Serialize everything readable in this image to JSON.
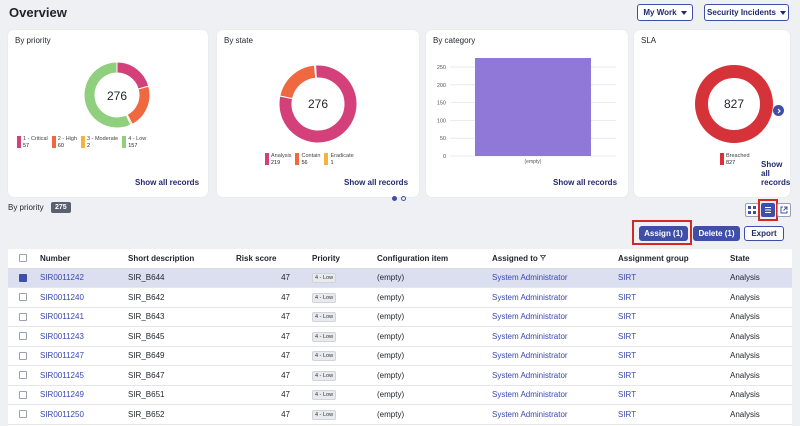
{
  "page": {
    "title": "Overview"
  },
  "header": {
    "my_work": "My Work",
    "security_incidents": "Security Incidents"
  },
  "cards": {
    "priority": {
      "title": "By priority",
      "total": "276",
      "show_all": "Show all records",
      "legend": [
        {
          "label": "1 - Critical",
          "value": "57",
          "color": "#d4407a"
        },
        {
          "label": "2 - High",
          "value": "60",
          "color": "#ef6840"
        },
        {
          "label": "3 - Moderate",
          "value": "2",
          "color": "#f6b23e"
        },
        {
          "label": "4 - Low",
          "value": "157",
          "color": "#8fcf7e"
        }
      ]
    },
    "state": {
      "title": "By state",
      "total": "276",
      "show_all": "Show all records",
      "legend": [
        {
          "label": "Analysis",
          "value": "219",
          "color": "#d4407a"
        },
        {
          "label": "Contain",
          "value": "56",
          "color": "#ef6840"
        },
        {
          "label": "Eradicate",
          "value": "1",
          "color": "#f6b23e"
        }
      ]
    },
    "category": {
      "title": "By category",
      "show_all": "Show all records",
      "y_ticks": [
        "250",
        "200",
        "150",
        "100",
        "50",
        "0"
      ]
    },
    "sla": {
      "title": "SLA",
      "total": "827",
      "show_all": "Show all records",
      "legend": [
        {
          "label": "Breached",
          "value": "827",
          "color": "#d6323a"
        }
      ]
    }
  },
  "chart_data": [
    {
      "type": "pie",
      "title": "By priority",
      "categories": [
        "1 - Critical",
        "2 - High",
        "3 - Moderate",
        "4 - Low"
      ],
      "values": [
        57,
        60,
        2,
        157
      ]
    },
    {
      "type": "pie",
      "title": "By state",
      "categories": [
        "Analysis",
        "Contain",
        "Eradicate"
      ],
      "values": [
        219,
        56,
        1
      ]
    },
    {
      "type": "bar",
      "title": "By category",
      "categories": [
        "(empty)"
      ],
      "values": [
        276
      ],
      "ylim": [
        0,
        276
      ]
    },
    {
      "type": "pie",
      "title": "SLA",
      "categories": [
        "Breached"
      ],
      "values": [
        827
      ]
    }
  ],
  "filter": {
    "label": "By priority",
    "count": "275"
  },
  "actions": {
    "assign": "Assign (1)",
    "delete": "Delete (1)",
    "export": "Export"
  },
  "table": {
    "headers": [
      "Number",
      "Short description",
      "Risk score",
      "Priority",
      "Configuration item",
      "Assigned to",
      "Assignment group",
      "State"
    ],
    "rows": [
      {
        "number": "SIR0011242",
        "desc": "SIR_B644",
        "risk": "47",
        "priority": "4 - Low",
        "ci": "(empty)",
        "assigned": "System Administrator",
        "group": "SIRT",
        "state": "Analysis",
        "selected": true
      },
      {
        "number": "SIR0011240",
        "desc": "SIR_B642",
        "risk": "47",
        "priority": "4 - Low",
        "ci": "(empty)",
        "assigned": "System Administrator",
        "group": "SIRT",
        "state": "Analysis",
        "selected": false
      },
      {
        "number": "SIR0011241",
        "desc": "SIR_B643",
        "risk": "47",
        "priority": "4 - Low",
        "ci": "(empty)",
        "assigned": "System Administrator",
        "group": "SIRT",
        "state": "Analysis",
        "selected": false
      },
      {
        "number": "SIR0011243",
        "desc": "SIR_B645",
        "risk": "47",
        "priority": "4 - Low",
        "ci": "(empty)",
        "assigned": "System Administrator",
        "group": "SIRT",
        "state": "Analysis",
        "selected": false
      },
      {
        "number": "SIR0011247",
        "desc": "SIR_B649",
        "risk": "47",
        "priority": "4 - Low",
        "ci": "(empty)",
        "assigned": "System Administrator",
        "group": "SIRT",
        "state": "Analysis",
        "selected": false
      },
      {
        "number": "SIR0011245",
        "desc": "SIR_B647",
        "risk": "47",
        "priority": "4 - Low",
        "ci": "(empty)",
        "assigned": "System Administrator",
        "group": "SIRT",
        "state": "Analysis",
        "selected": false
      },
      {
        "number": "SIR0011249",
        "desc": "SIR_B651",
        "risk": "47",
        "priority": "4 - Low",
        "ci": "(empty)",
        "assigned": "System Administrator",
        "group": "SIRT",
        "state": "Analysis",
        "selected": false
      },
      {
        "number": "SIR0011250",
        "desc": "SIR_B652",
        "risk": "47",
        "priority": "4 - Low",
        "ci": "(empty)",
        "assigned": "System Administrator",
        "group": "SIRT",
        "state": "Analysis",
        "selected": false
      }
    ]
  }
}
